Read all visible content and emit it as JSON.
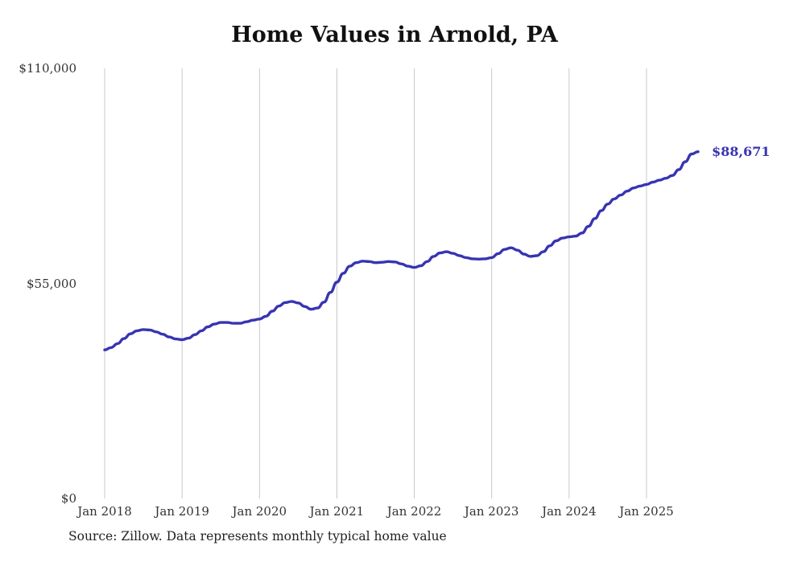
{
  "chart_data": {
    "type": "line",
    "title": "Home Values in Arnold, PA",
    "source_note": "Source: Zillow. Data represents monthly typical home value",
    "end_label": "$88,671",
    "line_color": "#3734b2",
    "grid_color": "#c9c9c9",
    "grid": "vertical-only",
    "legend_position": "none",
    "ylim": [
      0,
      110000
    ],
    "ytick_values": [
      0,
      55000,
      110000
    ],
    "ytick_labels": [
      "$0",
      "$55,000",
      "$110,000"
    ],
    "xtick_labels": [
      "Jan 2018",
      "Jan 2019",
      "Jan 2020",
      "Jan 2021",
      "Jan 2022",
      "Jan 2023",
      "Jan 2024",
      "Jan 2025"
    ],
    "xtick_month_indices": [
      0,
      12,
      24,
      36,
      48,
      60,
      72,
      84
    ],
    "x": [
      "2018-01",
      "2018-02",
      "2018-03",
      "2018-04",
      "2018-05",
      "2018-06",
      "2018-07",
      "2018-08",
      "2018-09",
      "2018-10",
      "2018-11",
      "2018-12",
      "2019-01",
      "2019-02",
      "2019-03",
      "2019-04",
      "2019-05",
      "2019-06",
      "2019-07",
      "2019-08",
      "2019-09",
      "2019-10",
      "2019-11",
      "2019-12",
      "2020-01",
      "2020-02",
      "2020-03",
      "2020-04",
      "2020-05",
      "2020-06",
      "2020-07",
      "2020-08",
      "2020-09",
      "2020-10",
      "2020-11",
      "2020-12",
      "2021-01",
      "2021-02",
      "2021-03",
      "2021-04",
      "2021-05",
      "2021-06",
      "2021-07",
      "2021-08",
      "2021-09",
      "2021-10",
      "2021-11",
      "2021-12",
      "2022-01",
      "2022-02",
      "2022-03",
      "2022-04",
      "2022-05",
      "2022-06",
      "2022-07",
      "2022-08",
      "2022-09",
      "2022-10",
      "2022-11",
      "2022-12",
      "2023-01",
      "2023-02",
      "2023-03",
      "2023-04",
      "2023-05",
      "2023-06",
      "2023-07",
      "2023-08",
      "2023-09",
      "2023-10",
      "2023-11",
      "2023-12",
      "2024-01",
      "2024-02",
      "2024-03",
      "2024-04",
      "2024-05",
      "2024-06",
      "2024-07",
      "2024-08",
      "2024-09",
      "2024-10",
      "2024-11",
      "2024-12",
      "2025-01",
      "2025-02",
      "2025-03",
      "2025-04",
      "2025-05",
      "2025-06",
      "2025-07",
      "2025-08",
      "2025-09"
    ],
    "values": [
      38000,
      38600,
      39600,
      40900,
      42100,
      42900,
      43200,
      43100,
      42600,
      42000,
      41300,
      40800,
      40600,
      41000,
      41900,
      42900,
      43900,
      44600,
      45000,
      45000,
      44800,
      44800,
      45200,
      45600,
      45900,
      46600,
      47900,
      49200,
      50100,
      50400,
      50000,
      49100,
      48400,
      48700,
      50200,
      52700,
      55300,
      57600,
      59400,
      60300,
      60700,
      60600,
      60300,
      60400,
      60600,
      60500,
      60000,
      59400,
      59100,
      59500,
      60600,
      61900,
      62800,
      63100,
      62700,
      62100,
      61600,
      61300,
      61200,
      61300,
      61600,
      62600,
      63700,
      64100,
      63500,
      62500,
      61900,
      62100,
      63100,
      64600,
      65900,
      66600,
      66900,
      67100,
      67900,
      69600,
      71600,
      73600,
      75300,
      76600,
      77600,
      78600,
      79400,
      79900,
      80300,
      80900,
      81400,
      81900,
      82600,
      84100,
      86100,
      88100,
      88671
    ],
    "latest_value": 88671
  }
}
